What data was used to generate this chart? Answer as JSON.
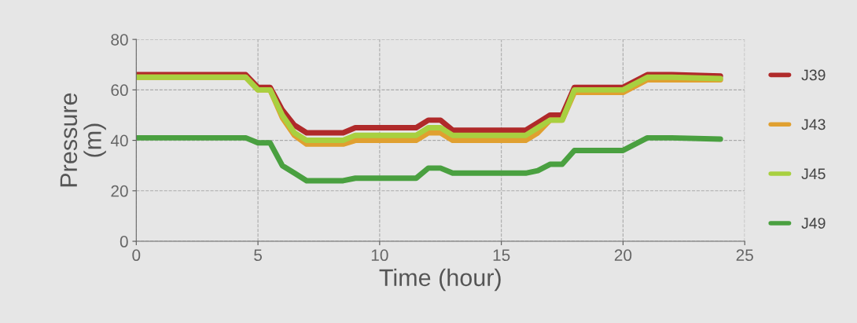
{
  "chart_data": {
    "type": "line",
    "xlabel": "Time (hour)",
    "ylabel": "Pressure\n(m)",
    "x": [
      0,
      4.5,
      5,
      5.5,
      6,
      6.5,
      7,
      8.5,
      9,
      11.5,
      12,
      12.5,
      13,
      16,
      16.5,
      17,
      17.5,
      18,
      20,
      21,
      22,
      24
    ],
    "series": [
      {
        "name": "J39",
        "color": "#b02a2a",
        "values": [
          66,
          66,
          61,
          61,
          52,
          46,
          43,
          43,
          45,
          45,
          48,
          48,
          44,
          44,
          47,
          50,
          50,
          61,
          61,
          66,
          66,
          65.5
        ]
      },
      {
        "name": "J43",
        "color": "#e0a030",
        "values": [
          65,
          65,
          60,
          60,
          49,
          42,
          38.5,
          38.5,
          40,
          40,
          43,
          43,
          40,
          40,
          43,
          48,
          48,
          59,
          59,
          64,
          64,
          64
        ]
      },
      {
        "name": "J45",
        "color": "#a8d040",
        "values": [
          65,
          65,
          60,
          60,
          50,
          43,
          40,
          40,
          42,
          42,
          45,
          45,
          42,
          42,
          45,
          48,
          48,
          60,
          60,
          65,
          65,
          64.5
        ]
      },
      {
        "name": "J49",
        "color": "#4aa040",
        "values": [
          41,
          41,
          39,
          39,
          30,
          27,
          24,
          24,
          25,
          25,
          29,
          29,
          27,
          27,
          28,
          30.5,
          30.5,
          36,
          36,
          41,
          41,
          40.5
        ]
      }
    ],
    "xlim": [
      0,
      25
    ],
    "xticks": [
      0,
      5,
      10,
      15,
      20,
      25
    ],
    "ylim": [
      0,
      80
    ],
    "yticks": [
      0,
      20,
      40,
      60,
      80
    ],
    "grid": true,
    "legend": "right",
    "marker": "none",
    "line_style": "solid"
  }
}
